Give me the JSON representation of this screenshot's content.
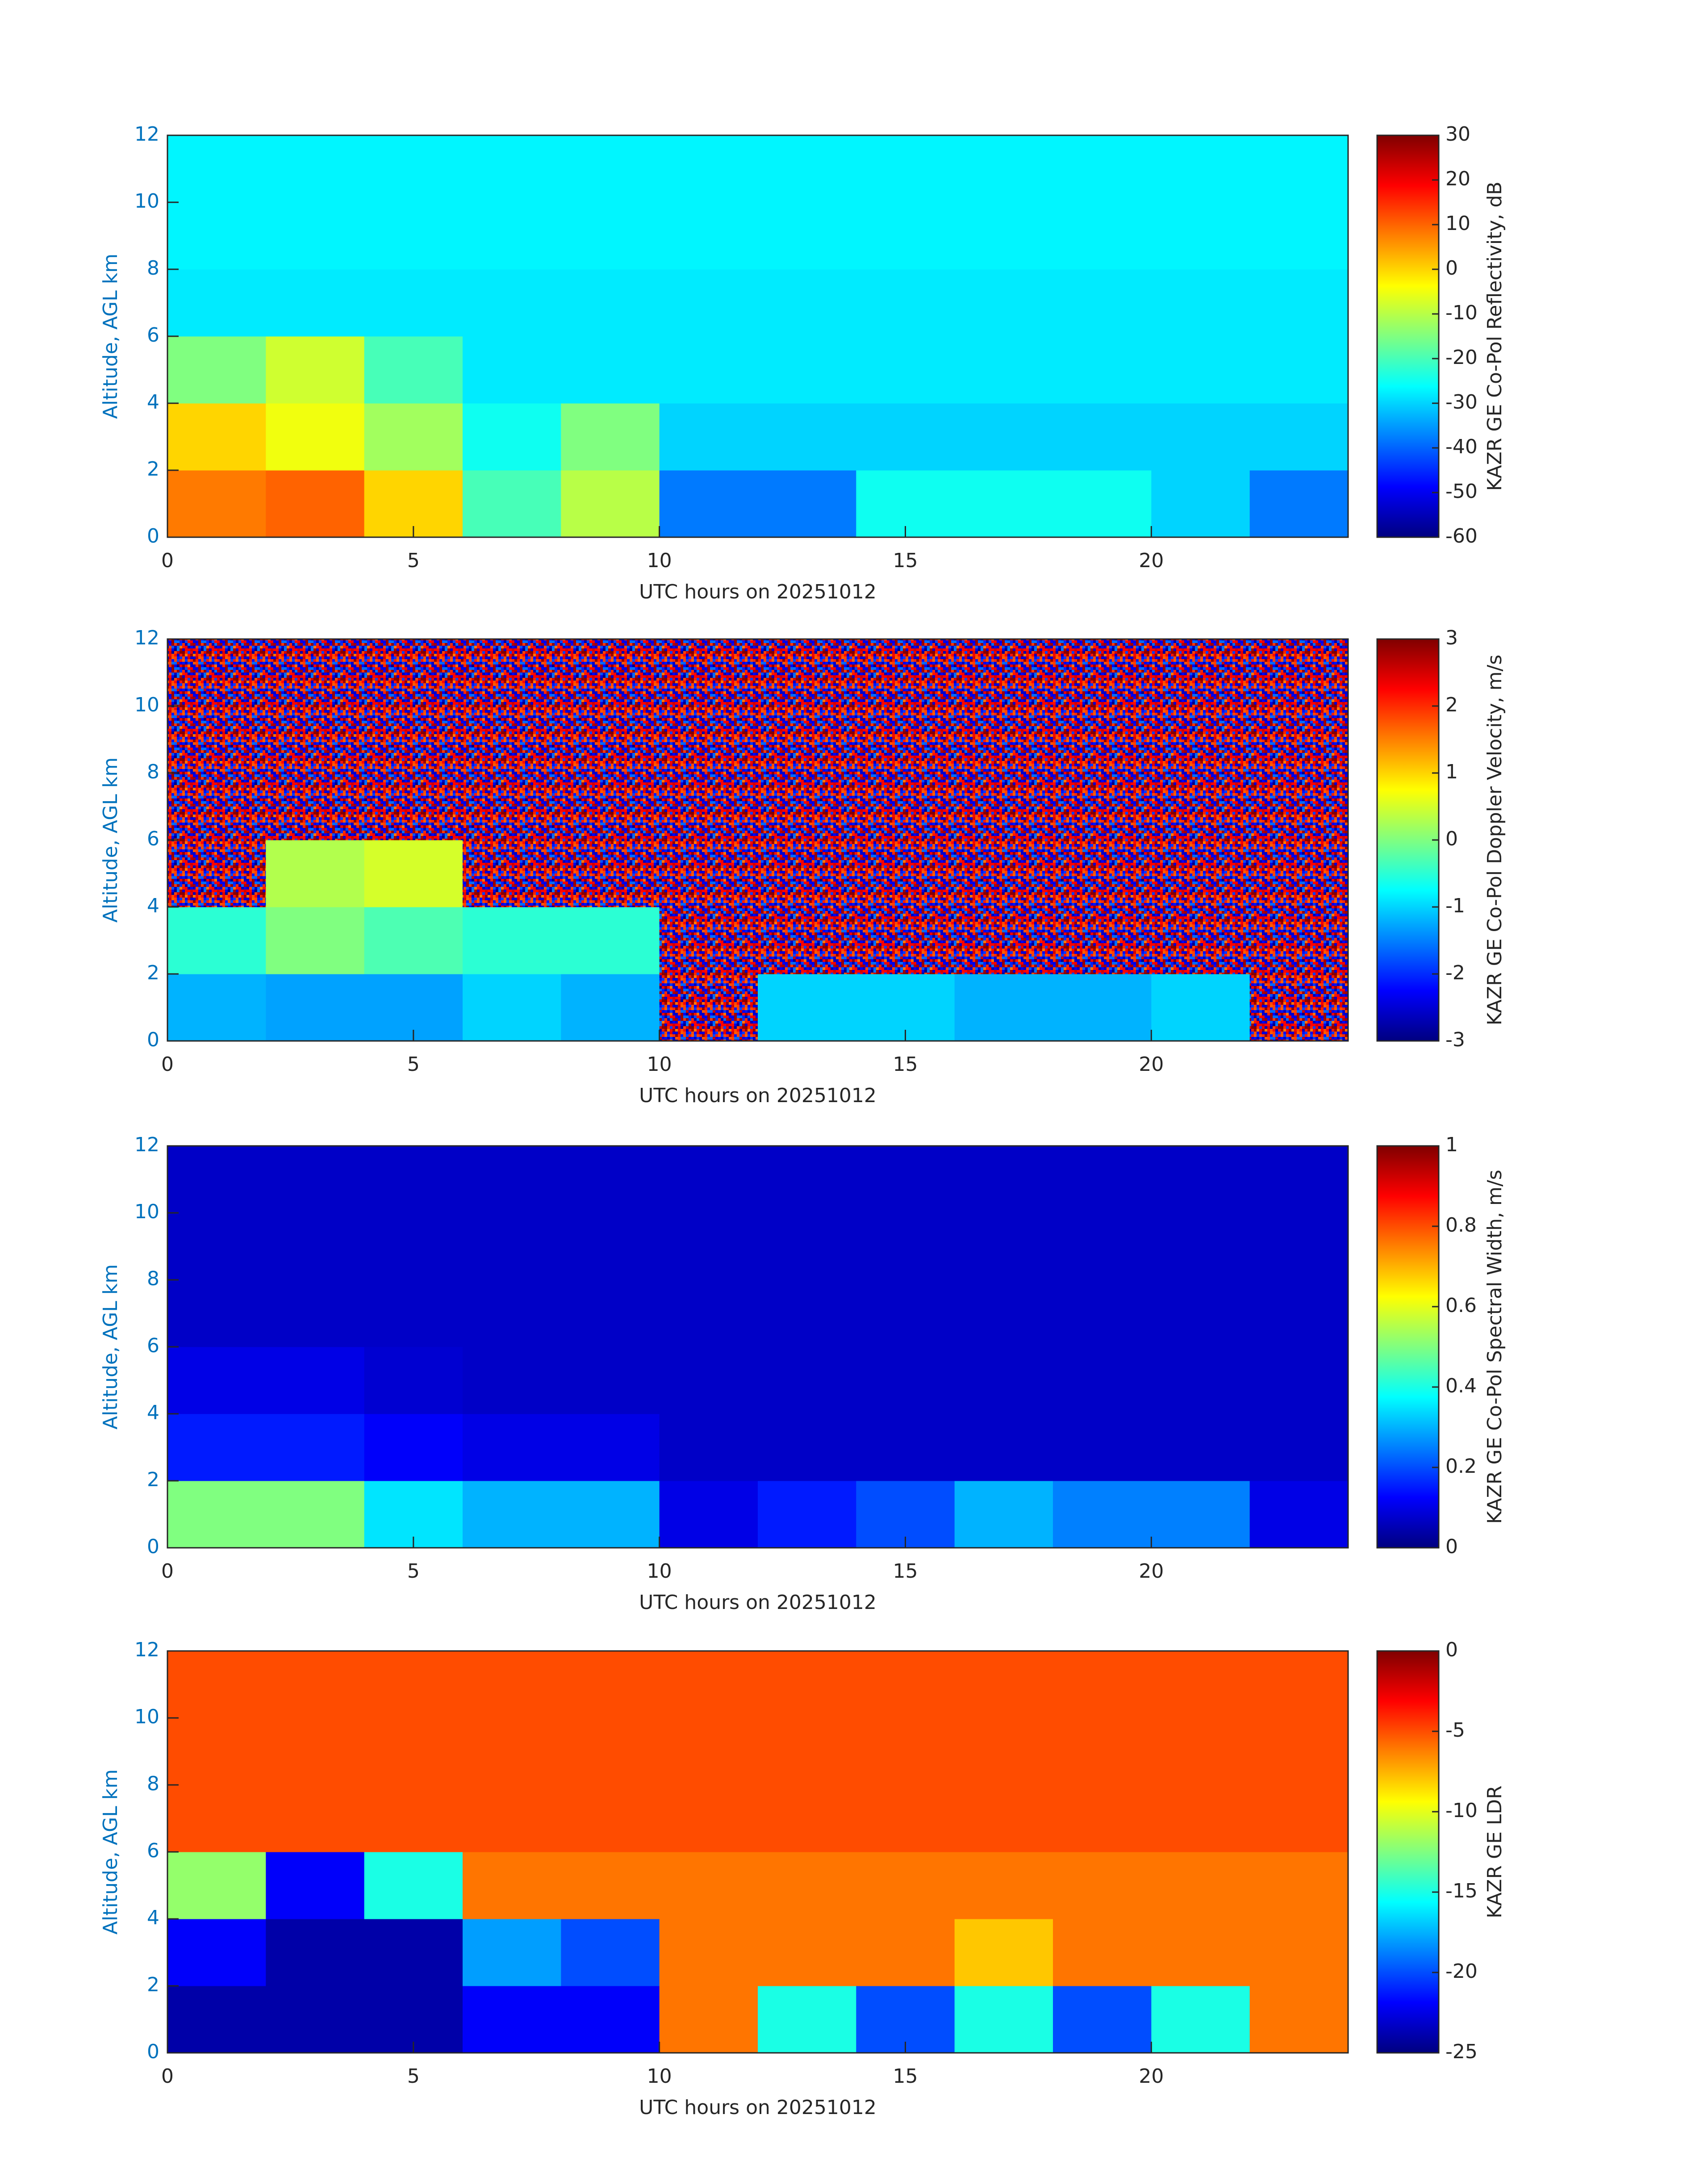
{
  "chart_data": [
    {
      "type": "heatmap",
      "colormap": "jet",
      "xlabel": "UTC hours on 20251012",
      "ylabel": "Altitude, AGL km",
      "colorbar_label": "KAZR GE Co-Pol Reflectivity, dB",
      "xlim": [
        0,
        24
      ],
      "ylim": [
        0,
        12
      ],
      "xticks": [
        0,
        5,
        10,
        15,
        20
      ],
      "yticks": [
        0,
        2,
        4,
        6,
        8,
        10,
        12
      ],
      "clim": [
        -60,
        30
      ],
      "cticks": [
        -60,
        -50,
        -40,
        -30,
        -20,
        -10,
        0,
        10,
        20,
        30
      ],
      "xbins": [
        0,
        2,
        4,
        6,
        8,
        10,
        12,
        14,
        16,
        18,
        20,
        22,
        24
      ],
      "ybins": [
        0,
        2,
        4,
        6,
        8,
        10,
        12
      ],
      "values": [
        [
          8,
          10,
          0,
          -20,
          -10,
          -38,
          -38,
          -25,
          -25,
          -25,
          -30,
          -38
        ],
        [
          0,
          -5,
          -12,
          -25,
          -15,
          -30,
          -30,
          -30,
          -30,
          -30,
          -30,
          -30
        ],
        [
          -15,
          -8,
          -20,
          -28,
          -28,
          -28,
          -28,
          -28,
          -28,
          -28,
          -28,
          -28
        ],
        [
          -28,
          -28,
          -28,
          -28,
          -28,
          -28,
          -28,
          -28,
          -28,
          -28,
          -28,
          -28
        ],
        [
          -27,
          -27,
          -27,
          -27,
          -27,
          -27,
          -27,
          -27,
          -27,
          -27,
          -27,
          -27
        ],
        [
          -27,
          -27,
          -27,
          -27,
          -27,
          -27,
          -27,
          -27,
          -27,
          -27,
          -27,
          -27
        ]
      ]
    },
    {
      "type": "heatmap",
      "colormap": "jet",
      "xlabel": "UTC hours on 20251012",
      "ylabel": "Altitude, AGL km",
      "colorbar_label": "KAZR GE Co-Pol Doppler Velocity, m/s",
      "xlim": [
        0,
        24
      ],
      "ylim": [
        0,
        12
      ],
      "xticks": [
        0,
        5,
        10,
        15,
        20
      ],
      "yticks": [
        0,
        2,
        4,
        6,
        8,
        10,
        12
      ],
      "clim": [
        -3,
        3
      ],
      "cticks": [
        -3,
        -2,
        -1,
        0,
        1,
        2,
        3
      ],
      "xbins": [
        0,
        2,
        4,
        6,
        8,
        10,
        12,
        14,
        16,
        18,
        20,
        22,
        24
      ],
      "ybins": [
        0,
        2,
        4,
        6,
        8,
        10,
        12
      ],
      "values": [
        [
          -1.2,
          -1.3,
          -1.3,
          -1.0,
          -1.2,
          null,
          -1.0,
          -1.0,
          -1.2,
          -1.2,
          -1.0,
          null
        ],
        [
          -0.5,
          0,
          -0.3,
          -0.5,
          -0.5,
          null,
          null,
          null,
          null,
          null,
          null,
          null
        ],
        [
          null,
          0.3,
          0.5,
          null,
          null,
          null,
          null,
          null,
          null,
          null,
          null,
          null
        ],
        [
          null,
          null,
          null,
          null,
          null,
          null,
          null,
          null,
          null,
          null,
          null,
          null
        ],
        [
          null,
          null,
          null,
          null,
          null,
          null,
          null,
          null,
          null,
          null,
          null,
          null
        ],
        [
          null,
          null,
          null,
          null,
          null,
          null,
          null,
          null,
          null,
          null,
          null,
          null
        ]
      ]
    },
    {
      "type": "heatmap",
      "colormap": "jet",
      "xlabel": "UTC hours on 20251012",
      "ylabel": "Altitude, AGL km",
      "colorbar_label": "KAZR GE Co-Pol Spectral Width, m/s",
      "xlim": [
        0,
        24
      ],
      "ylim": [
        0,
        12
      ],
      "xticks": [
        0,
        5,
        10,
        15,
        20
      ],
      "yticks": [
        0,
        2,
        4,
        6,
        8,
        10,
        12
      ],
      "clim": [
        0,
        1
      ],
      "cticks": [
        0,
        0.2,
        0.4,
        0.6,
        0.8,
        1
      ],
      "xbins": [
        0,
        2,
        4,
        6,
        8,
        10,
        12,
        14,
        16,
        18,
        20,
        22,
        24
      ],
      "ybins": [
        0,
        2,
        4,
        6,
        8,
        10,
        12
      ],
      "values": [
        [
          0.5,
          0.5,
          0.35,
          0.3,
          0.3,
          0.1,
          0.15,
          0.2,
          0.3,
          0.25,
          0.25,
          0.1
        ],
        [
          0.15,
          0.15,
          0.12,
          0.1,
          0.1,
          0.07,
          0.07,
          0.07,
          0.07,
          0.07,
          0.07,
          0.07
        ],
        [
          0.1,
          0.1,
          0.08,
          0.07,
          0.07,
          0.07,
          0.07,
          0.07,
          0.07,
          0.07,
          0.07,
          0.07
        ],
        [
          0.07,
          0.07,
          0.07,
          0.07,
          0.07,
          0.07,
          0.07,
          0.07,
          0.07,
          0.07,
          0.07,
          0.07
        ],
        [
          0.07,
          0.07,
          0.07,
          0.07,
          0.07,
          0.07,
          0.07,
          0.07,
          0.07,
          0.07,
          0.07,
          0.07
        ],
        [
          0.07,
          0.07,
          0.07,
          0.07,
          0.07,
          0.07,
          0.07,
          0.07,
          0.07,
          0.07,
          0.07,
          0.07
        ]
      ]
    },
    {
      "type": "heatmap",
      "colormap": "jet",
      "xlabel": "UTC hours on 20251012",
      "ylabel": "Altitude, AGL km",
      "colorbar_label": "KAZR GE LDR",
      "xlim": [
        0,
        24
      ],
      "ylim": [
        0,
        12
      ],
      "xticks": [
        0,
        5,
        10,
        15,
        20
      ],
      "yticks": [
        0,
        2,
        4,
        6,
        8,
        10,
        12
      ],
      "clim": [
        -25,
        0
      ],
      "cticks": [
        -25,
        -20,
        -15,
        -10,
        -5,
        0
      ],
      "xbins": [
        0,
        2,
        4,
        6,
        8,
        10,
        12,
        14,
        16,
        18,
        20,
        22,
        24
      ],
      "ybins": [
        0,
        2,
        4,
        6,
        8,
        10,
        12
      ],
      "values": [
        [
          -24,
          -24,
          -24,
          -22,
          -22,
          -6,
          -15,
          -20,
          -15,
          -20,
          -15,
          -6
        ],
        [
          -22,
          -24,
          -24,
          -18,
          -20,
          -6,
          -6,
          -6,
          -8,
          -6,
          -6,
          -6
        ],
        [
          -12,
          -22,
          -15,
          -6,
          -6,
          -6,
          -6,
          -6,
          -6,
          -6,
          -6,
          -6
        ],
        [
          -5,
          -5,
          -5,
          -5,
          -5,
          -5,
          -5,
          -5,
          -5,
          -5,
          -5,
          -5
        ],
        [
          -5,
          -5,
          -5,
          -5,
          -5,
          -5,
          -5,
          -5,
          -5,
          -5,
          -5,
          -5
        ],
        [
          -5,
          -5,
          -5,
          -5,
          -5,
          -5,
          -5,
          -5,
          -5,
          -5,
          -5,
          -5
        ]
      ]
    }
  ]
}
